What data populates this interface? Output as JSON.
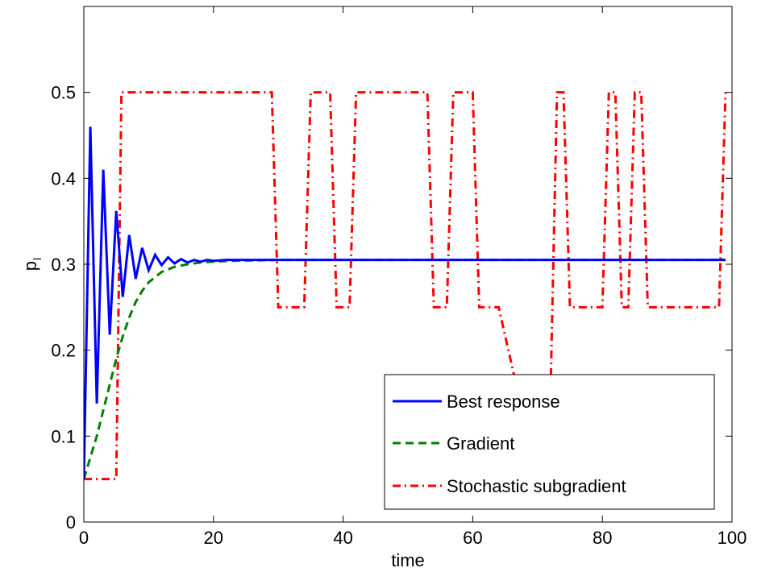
{
  "chart_data": {
    "type": "line",
    "xlabel": "time",
    "ylabel": "p",
    "ylabel_subscript": "l",
    "xlim": [
      0,
      100
    ],
    "ylim": [
      0,
      0.6
    ],
    "xticks": [
      0,
      20,
      40,
      60,
      80,
      100
    ],
    "yticks": [
      0,
      0.1,
      0.2,
      0.3,
      0.4,
      0.5
    ],
    "xtick_labels": [
      "0",
      "20",
      "40",
      "60",
      "80",
      "100"
    ],
    "ytick_labels": [
      "0",
      "0.1",
      "0.2",
      "0.3",
      "0.4",
      "0.5"
    ],
    "grid": false,
    "legend_position": "bottom-right",
    "series": [
      {
        "name": "Best response",
        "color": "#0000ff",
        "style": "solid",
        "x": [
          0,
          1,
          2,
          3,
          4,
          5,
          6,
          7,
          8,
          9,
          10,
          11,
          12,
          13,
          14,
          15,
          16,
          17,
          18,
          19,
          20,
          22,
          25,
          30,
          40,
          60,
          80,
          99
        ],
        "y": [
          0.05,
          0.46,
          0.138,
          0.41,
          0.218,
          0.362,
          0.262,
          0.334,
          0.283,
          0.319,
          0.293,
          0.311,
          0.299,
          0.308,
          0.301,
          0.306,
          0.302,
          0.305,
          0.303,
          0.305,
          0.304,
          0.305,
          0.305,
          0.305,
          0.305,
          0.305,
          0.305,
          0.305
        ]
      },
      {
        "name": "Gradient",
        "color": "#008000",
        "style": "dashed",
        "x": [
          0,
          1,
          2,
          3,
          4,
          5,
          6,
          7,
          8,
          9,
          10,
          12,
          14,
          16,
          18,
          20,
          23,
          26,
          30,
          35,
          40,
          50,
          60,
          80,
          99
        ],
        "y": [
          0.05,
          0.075,
          0.1,
          0.13,
          0.16,
          0.19,
          0.216,
          0.238,
          0.256,
          0.269,
          0.279,
          0.291,
          0.297,
          0.3,
          0.302,
          0.303,
          0.304,
          0.3045,
          0.305,
          0.305,
          0.305,
          0.305,
          0.305,
          0.305,
          0.305
        ]
      },
      {
        "name": "Stochastic subgradient",
        "color": "#ff0000",
        "style": "dashdot",
        "x": [
          0,
          0.2,
          1,
          5,
          5.8,
          6,
          29,
          30,
          34,
          35,
          38,
          39,
          41,
          42,
          53,
          54,
          56,
          57,
          60,
          61,
          63,
          64,
          67,
          68,
          71,
          72,
          73,
          74,
          75,
          76,
          80,
          81,
          82,
          83,
          84,
          85,
          86,
          87,
          88,
          89,
          98,
          99
        ],
        "y": [
          0.05,
          0.05,
          0.05,
          0.05,
          0.5,
          0.5,
          0.5,
          0.25,
          0.25,
          0.5,
          0.5,
          0.25,
          0.25,
          0.5,
          0.5,
          0.25,
          0.25,
          0.5,
          0.5,
          0.25,
          0.25,
          0.25,
          0.15,
          0.15,
          0.15,
          0.15,
          0.5,
          0.5,
          0.25,
          0.25,
          0.25,
          0.5,
          0.5,
          0.25,
          0.25,
          0.5,
          0.5,
          0.25,
          0.25,
          0.25,
          0.25,
          0.5
        ]
      }
    ]
  }
}
